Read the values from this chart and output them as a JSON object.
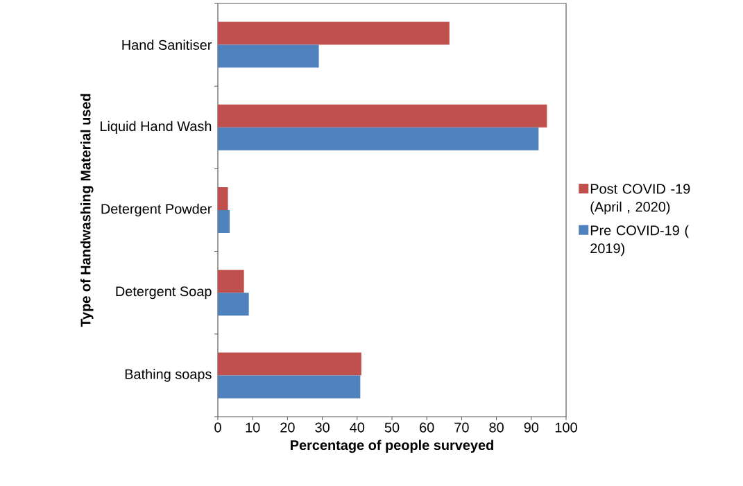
{
  "chart_data": {
    "type": "bar",
    "orientation": "horizontal",
    "categories": [
      "Hand Sanitiser",
      "Liquid Hand Wash",
      "Detergent Powder",
      "Detergent Soap",
      "Bathing soaps"
    ],
    "series": [
      {
        "name": "Post COVID -19 (April , 2020)",
        "color": "#c0504d",
        "values": [
          66.5,
          94.5,
          2.9,
          7.5,
          41.2
        ]
      },
      {
        "name": "Pre COVID-19 ( 2019)",
        "color": "#4f81bd",
        "values": [
          29.0,
          92.1,
          3.4,
          8.9,
          40.9
        ]
      }
    ],
    "xlabel": "Percentage of people surveyed",
    "ylabel": "Type of Handwashing Material used",
    "xlim": [
      0,
      100
    ],
    "xticks": [
      0,
      10,
      20,
      30,
      40,
      50,
      60,
      70,
      80,
      90,
      100
    ],
    "legend": "right"
  }
}
